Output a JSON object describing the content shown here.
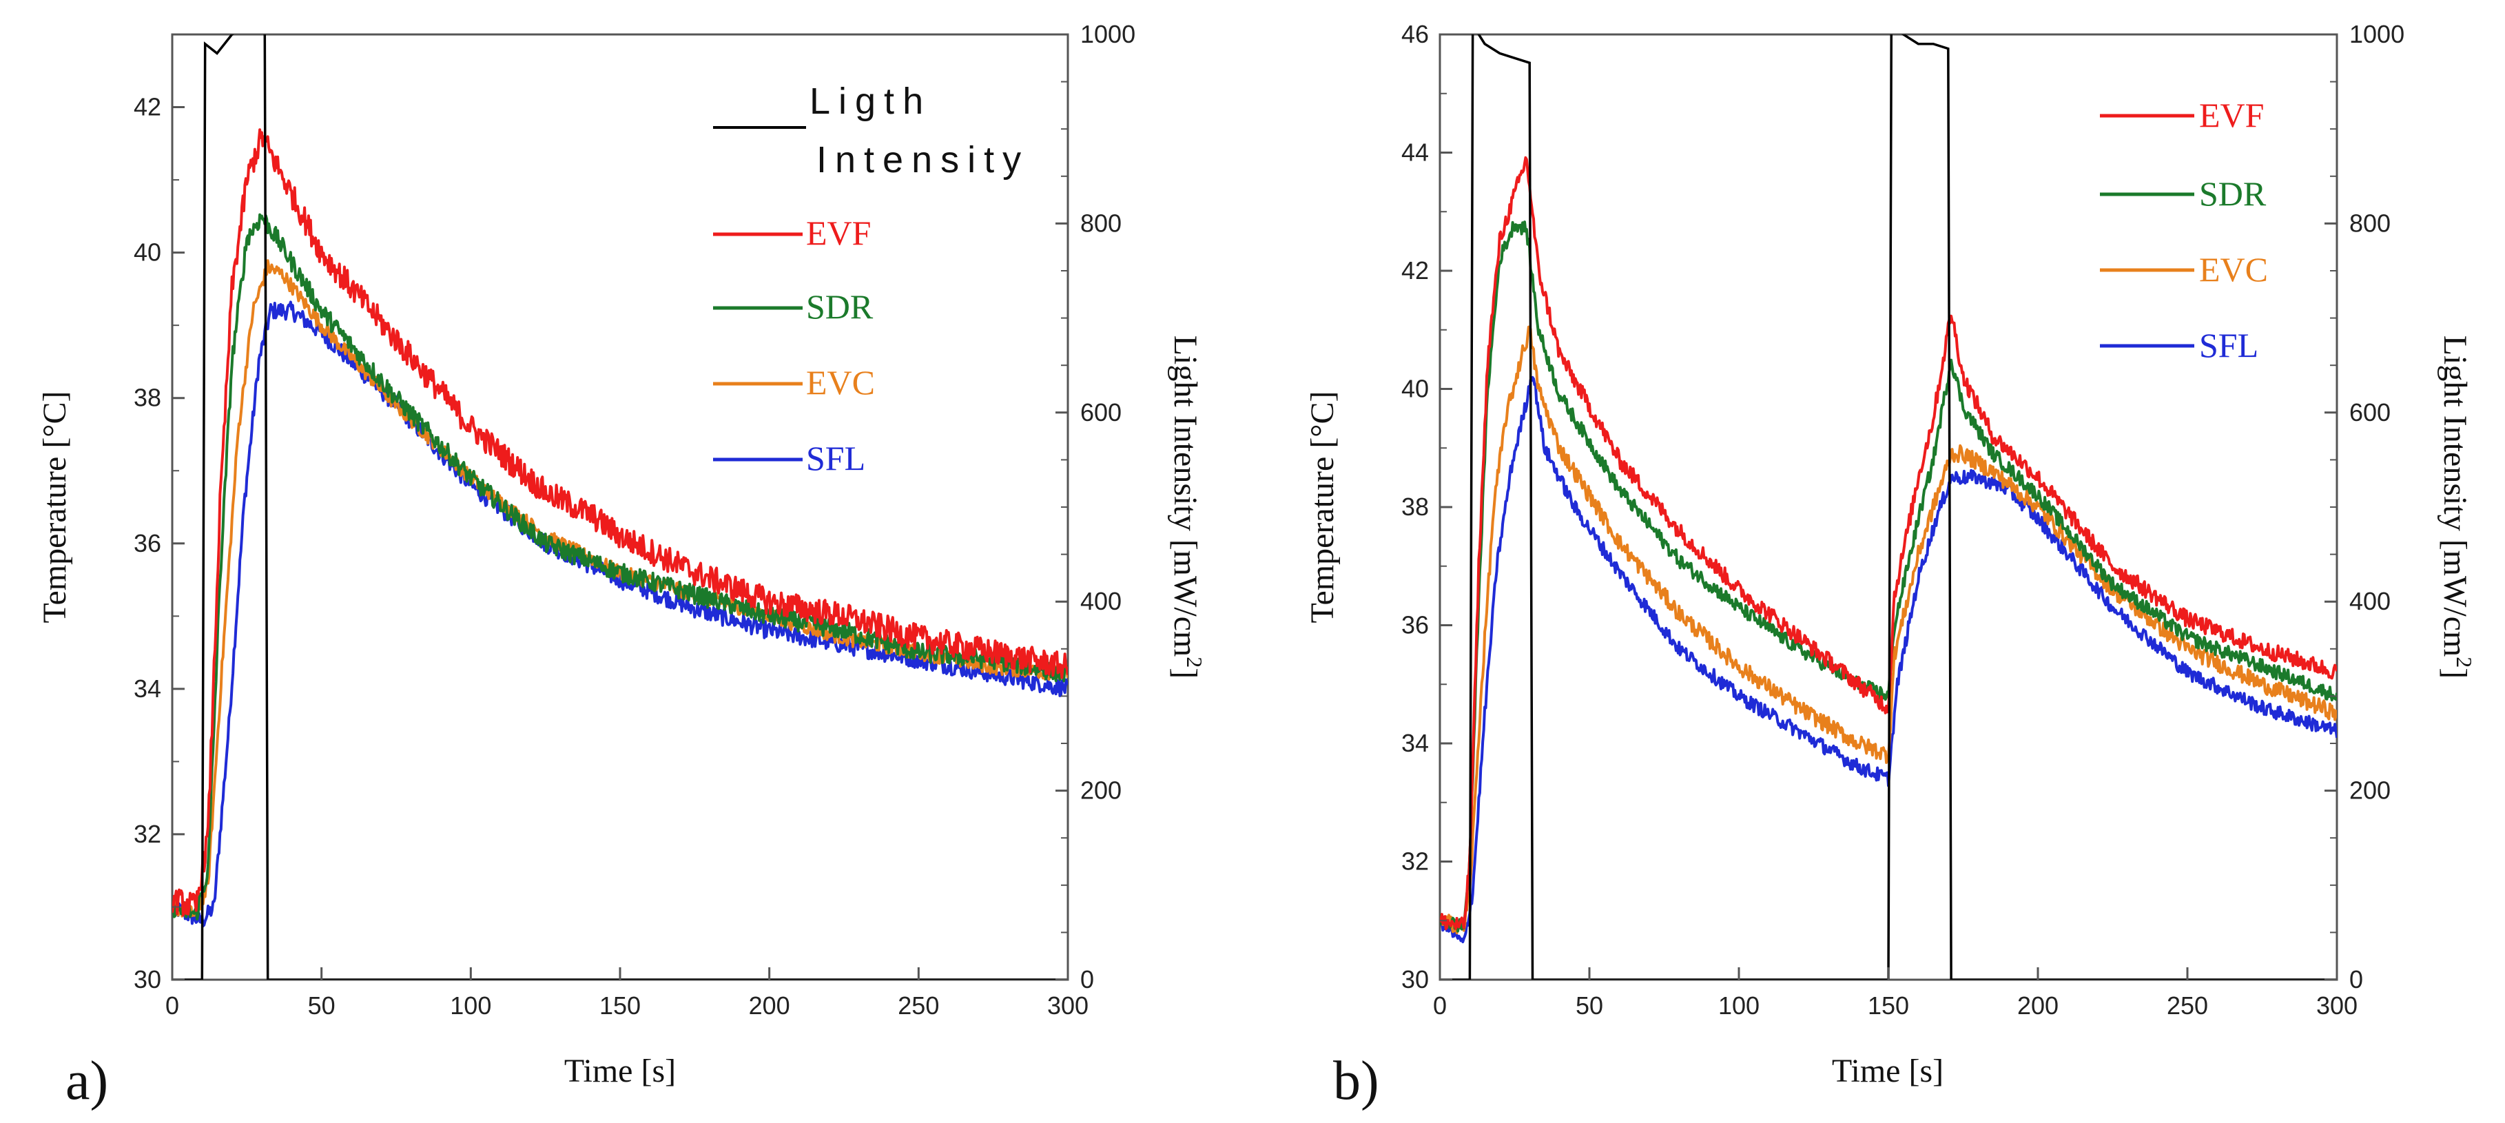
{
  "colors": {
    "light": "#000000",
    "EVF": "#ee1c1c",
    "SDR": "#1b7a2b",
    "EVC": "#e8801c",
    "SFL": "#1f2bd6",
    "axis": "#555555"
  },
  "chart_data": [
    {
      "type": "line",
      "panel_label": "a)",
      "xlabel": "Time [s]",
      "ylabel": "Temperature [°C]",
      "y2label_main": "Light Intensity [mW/cm",
      "y2label_sup": "2",
      "y2label_end": "]",
      "xlim": [
        0,
        300
      ],
      "ylim": [
        30,
        43
      ],
      "y2lim": [
        0,
        1000
      ],
      "xticks": [
        "0",
        "50",
        "100",
        "150",
        "200",
        "250",
        "300"
      ],
      "yticks": [
        "30",
        "32",
        "34",
        "36",
        "38",
        "40",
        "42"
      ],
      "y2ticks": [
        "0",
        "200",
        "400",
        "600",
        "800",
        "1000"
      ],
      "legend": {
        "light_line1": "Ligth",
        "light_line2": "Intensity",
        "entries": [
          "EVF",
          "SDR",
          "EVC",
          "SFL"
        ]
      },
      "light_series": {
        "name": "Ligth Intensity",
        "points": [
          [
            0,
            0
          ],
          [
            10,
            0
          ],
          [
            11,
            990
          ],
          [
            15,
            980
          ],
          [
            20,
            1000
          ],
          [
            25,
            1010
          ],
          [
            30,
            1005
          ],
          [
            31,
            1000
          ],
          [
            32,
            0
          ],
          [
            300,
            0
          ]
        ]
      },
      "series": [
        {
          "name": "EVF",
          "noise": 0.18,
          "points": [
            [
              0,
              31.1
            ],
            [
              8,
              31.0
            ],
            [
              12,
              32.0
            ],
            [
              16,
              36.5
            ],
            [
              20,
              39.5
            ],
            [
              25,
              41.0
            ],
            [
              30,
              41.6
            ],
            [
              35,
              41.2
            ],
            [
              50,
              40.0
            ],
            [
              75,
              38.8
            ],
            [
              100,
              37.6
            ],
            [
              125,
              36.7
            ],
            [
              140,
              36.4
            ],
            [
              150,
              36.1
            ],
            [
              175,
              35.6
            ],
            [
              200,
              35.2
            ],
            [
              225,
              35.0
            ],
            [
              250,
              34.7
            ],
            [
              275,
              34.5
            ],
            [
              300,
              34.3
            ]
          ]
        },
        {
          "name": "SDR",
          "noise": 0.13,
          "points": [
            [
              0,
              31.0
            ],
            [
              8,
              30.9
            ],
            [
              12,
              31.5
            ],
            [
              16,
              35.5
            ],
            [
              20,
              38.5
            ],
            [
              25,
              40.2
            ],
            [
              30,
              40.5
            ],
            [
              35,
              40.2
            ],
            [
              50,
              39.2
            ],
            [
              75,
              38.0
            ],
            [
              100,
              36.9
            ],
            [
              125,
              36.0
            ],
            [
              150,
              35.6
            ],
            [
              175,
              35.3
            ],
            [
              200,
              35.0
            ],
            [
              225,
              34.8
            ],
            [
              250,
              34.5
            ],
            [
              275,
              34.4
            ],
            [
              300,
              34.2
            ]
          ]
        },
        {
          "name": "EVC",
          "noise": 0.1,
          "points": [
            [
              0,
              31.0
            ],
            [
              8,
              30.9
            ],
            [
              12,
              31.3
            ],
            [
              17,
              34.5
            ],
            [
              22,
              37.5
            ],
            [
              27,
              39.2
            ],
            [
              32,
              39.8
            ],
            [
              37,
              39.7
            ],
            [
              50,
              39.0
            ],
            [
              75,
              37.9
            ],
            [
              100,
              36.9
            ],
            [
              125,
              36.1
            ],
            [
              150,
              35.6
            ],
            [
              175,
              35.3
            ],
            [
              200,
              35.0
            ],
            [
              225,
              34.7
            ],
            [
              250,
              34.5
            ],
            [
              275,
              34.3
            ],
            [
              300,
              34.2
            ]
          ]
        },
        {
          "name": "SFL",
          "noise": 0.12,
          "points": [
            [
              0,
              31.0
            ],
            [
              10,
              30.8
            ],
            [
              14,
              31.0
            ],
            [
              19,
              33.5
            ],
            [
              24,
              36.5
            ],
            [
              29,
              38.5
            ],
            [
              33,
              39.2
            ],
            [
              40,
              39.2
            ],
            [
              50,
              38.9
            ],
            [
              75,
              37.9
            ],
            [
              100,
              36.8
            ],
            [
              125,
              36.0
            ],
            [
              150,
              35.5
            ],
            [
              175,
              35.1
            ],
            [
              200,
              34.8
            ],
            [
              225,
              34.6
            ],
            [
              250,
              34.4
            ],
            [
              275,
              34.2
            ],
            [
              300,
              34.0
            ]
          ]
        }
      ]
    },
    {
      "type": "line",
      "panel_label": "b)",
      "xlabel": "Time [s]",
      "ylabel": "Temperature [°C]",
      "y2label_main": "Light Intensity [mW/cm",
      "y2label_sup": "2",
      "y2label_end": "]",
      "xlim": [
        0,
        300
      ],
      "ylim": [
        30,
        46
      ],
      "y2lim": [
        0,
        1000
      ],
      "xticks": [
        "0",
        "50",
        "100",
        "150",
        "200",
        "250",
        "300"
      ],
      "yticks": [
        "30",
        "32",
        "34",
        "36",
        "38",
        "40",
        "42",
        "44",
        "46"
      ],
      "y2ticks": [
        "0",
        "200",
        "400",
        "600",
        "800",
        "1000"
      ],
      "legend": {
        "entries": [
          "EVF",
          "SDR",
          "EVC",
          "SFL"
        ]
      },
      "light_series": {
        "name": "Light Intensity",
        "points": [
          [
            0,
            0
          ],
          [
            10,
            0
          ],
          [
            11,
            1010
          ],
          [
            15,
            990
          ],
          [
            20,
            980
          ],
          [
            25,
            975
          ],
          [
            30,
            970
          ],
          [
            31,
            0
          ],
          [
            150,
            0
          ],
          [
            151,
            1010
          ],
          [
            155,
            1000
          ],
          [
            160,
            990
          ],
          [
            165,
            990
          ],
          [
            170,
            985
          ],
          [
            171,
            0
          ],
          [
            300,
            0
          ]
        ]
      },
      "series": [
        {
          "name": "EVF",
          "noise": 0.14,
          "points": [
            [
              0,
              31.0
            ],
            [
              8,
              30.9
            ],
            [
              10,
              32.0
            ],
            [
              13,
              37.0
            ],
            [
              16,
              40.5
            ],
            [
              20,
              42.5
            ],
            [
              25,
              43.3
            ],
            [
              29,
              43.9
            ],
            [
              33,
              42.0
            ],
            [
              40,
              40.6
            ],
            [
              60,
              38.8
            ],
            [
              80,
              37.6
            ],
            [
              100,
              36.6
            ],
            [
              120,
              35.8
            ],
            [
              140,
              35.0
            ],
            [
              150,
              34.6
            ],
            [
              152,
              36.5
            ],
            [
              160,
              38.5
            ],
            [
              165,
              39.5
            ],
            [
              171,
              41.3
            ],
            [
              175,
              40.2
            ],
            [
              185,
              39.2
            ],
            [
              200,
              38.5
            ],
            [
              225,
              37.0
            ],
            [
              250,
              36.1
            ],
            [
              275,
              35.6
            ],
            [
              300,
              35.2
            ]
          ]
        },
        {
          "name": "SDR",
          "noise": 0.12,
          "points": [
            [
              0,
              31.0
            ],
            [
              8,
              30.9
            ],
            [
              10,
              32.0
            ],
            [
              13,
              36.5
            ],
            [
              16,
              40.0
            ],
            [
              20,
              42.2
            ],
            [
              25,
              42.8
            ],
            [
              29,
              42.7
            ],
            [
              33,
              41.0
            ],
            [
              40,
              39.9
            ],
            [
              60,
              38.3
            ],
            [
              80,
              37.1
            ],
            [
              100,
              36.3
            ],
            [
              120,
              35.6
            ],
            [
              140,
              35.0
            ],
            [
              150,
              34.8
            ],
            [
              152,
              36.0
            ],
            [
              160,
              37.8
            ],
            [
              165,
              38.8
            ],
            [
              171,
              40.5
            ],
            [
              175,
              39.7
            ],
            [
              185,
              38.9
            ],
            [
              200,
              38.2
            ],
            [
              225,
              36.7
            ],
            [
              250,
              35.8
            ],
            [
              275,
              35.3
            ],
            [
              300,
              34.8
            ]
          ]
        },
        {
          "name": "EVC",
          "noise": 0.14,
          "points": [
            [
              0,
              31.0
            ],
            [
              8,
              30.9
            ],
            [
              10,
              31.5
            ],
            [
              14,
              35.0
            ],
            [
              18,
              38.0
            ],
            [
              22,
              39.5
            ],
            [
              27,
              40.5
            ],
            [
              30,
              41.0
            ],
            [
              33,
              40.0
            ],
            [
              40,
              39.0
            ],
            [
              60,
              37.4
            ],
            [
              80,
              36.2
            ],
            [
              100,
              35.3
            ],
            [
              120,
              34.6
            ],
            [
              140,
              34.0
            ],
            [
              150,
              33.8
            ],
            [
              152,
              35.5
            ],
            [
              160,
              37.2
            ],
            [
              165,
              38.0
            ],
            [
              171,
              38.9
            ],
            [
              175,
              38.9
            ],
            [
              185,
              38.6
            ],
            [
              200,
              38.0
            ],
            [
              225,
              36.6
            ],
            [
              250,
              35.6
            ],
            [
              275,
              35.0
            ],
            [
              300,
              34.5
            ]
          ]
        },
        {
          "name": "SFL",
          "noise": 0.12,
          "points": [
            [
              0,
              31.0
            ],
            [
              8,
              30.6
            ],
            [
              11,
              31.5
            ],
            [
              15,
              34.5
            ],
            [
              19,
              37.0
            ],
            [
              24,
              38.7
            ],
            [
              29,
              39.8
            ],
            [
              31,
              40.3
            ],
            [
              35,
              39.0
            ],
            [
              45,
              38.0
            ],
            [
              60,
              36.9
            ],
            [
              80,
              35.6
            ],
            [
              100,
              34.8
            ],
            [
              120,
              34.2
            ],
            [
              140,
              33.6
            ],
            [
              150,
              33.4
            ],
            [
              153,
              35.0
            ],
            [
              160,
              36.8
            ],
            [
              166,
              37.8
            ],
            [
              171,
              38.5
            ],
            [
              180,
              38.5
            ],
            [
              190,
              38.3
            ],
            [
              200,
              37.8
            ],
            [
              225,
              36.3
            ],
            [
              250,
              35.2
            ],
            [
              275,
              34.6
            ],
            [
              300,
              34.2
            ]
          ]
        }
      ]
    }
  ]
}
